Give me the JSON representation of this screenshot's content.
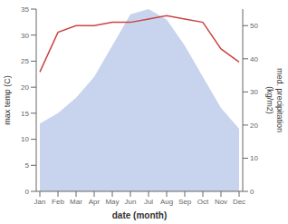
{
  "chart_data": {
    "type": "line",
    "categories": [
      "Jan",
      "Feb",
      "Mar",
      "Apr",
      "May",
      "Jun",
      "Jul",
      "Aug",
      "Sep",
      "Oct",
      "Nov",
      "Dec"
    ],
    "series": [
      {
        "type": "area",
        "color": "#c8d4ee",
        "values": [
          13,
          15,
          18,
          22,
          28,
          34,
          35,
          33,
          28,
          22,
          16,
          12
        ]
      },
      {
        "type": "line",
        "color": "#cc4444",
        "axis": "y2",
        "values": [
          36,
          48,
          50,
          50,
          51,
          51,
          52,
          53,
          52,
          51,
          43,
          39
        ]
      }
    ],
    "xlabel": "date (month)",
    "ylabel": "max temp (C)",
    "y2label": "med. precipitation\n(kg/m2)",
    "ylim": [
      0,
      35
    ],
    "yticks": [
      0,
      5,
      10,
      15,
      20,
      25,
      30,
      35
    ],
    "y2lim": [
      0,
      55
    ],
    "y2ticks": [
      0,
      10,
      20,
      30,
      40,
      50
    ],
    "grid": false
  }
}
